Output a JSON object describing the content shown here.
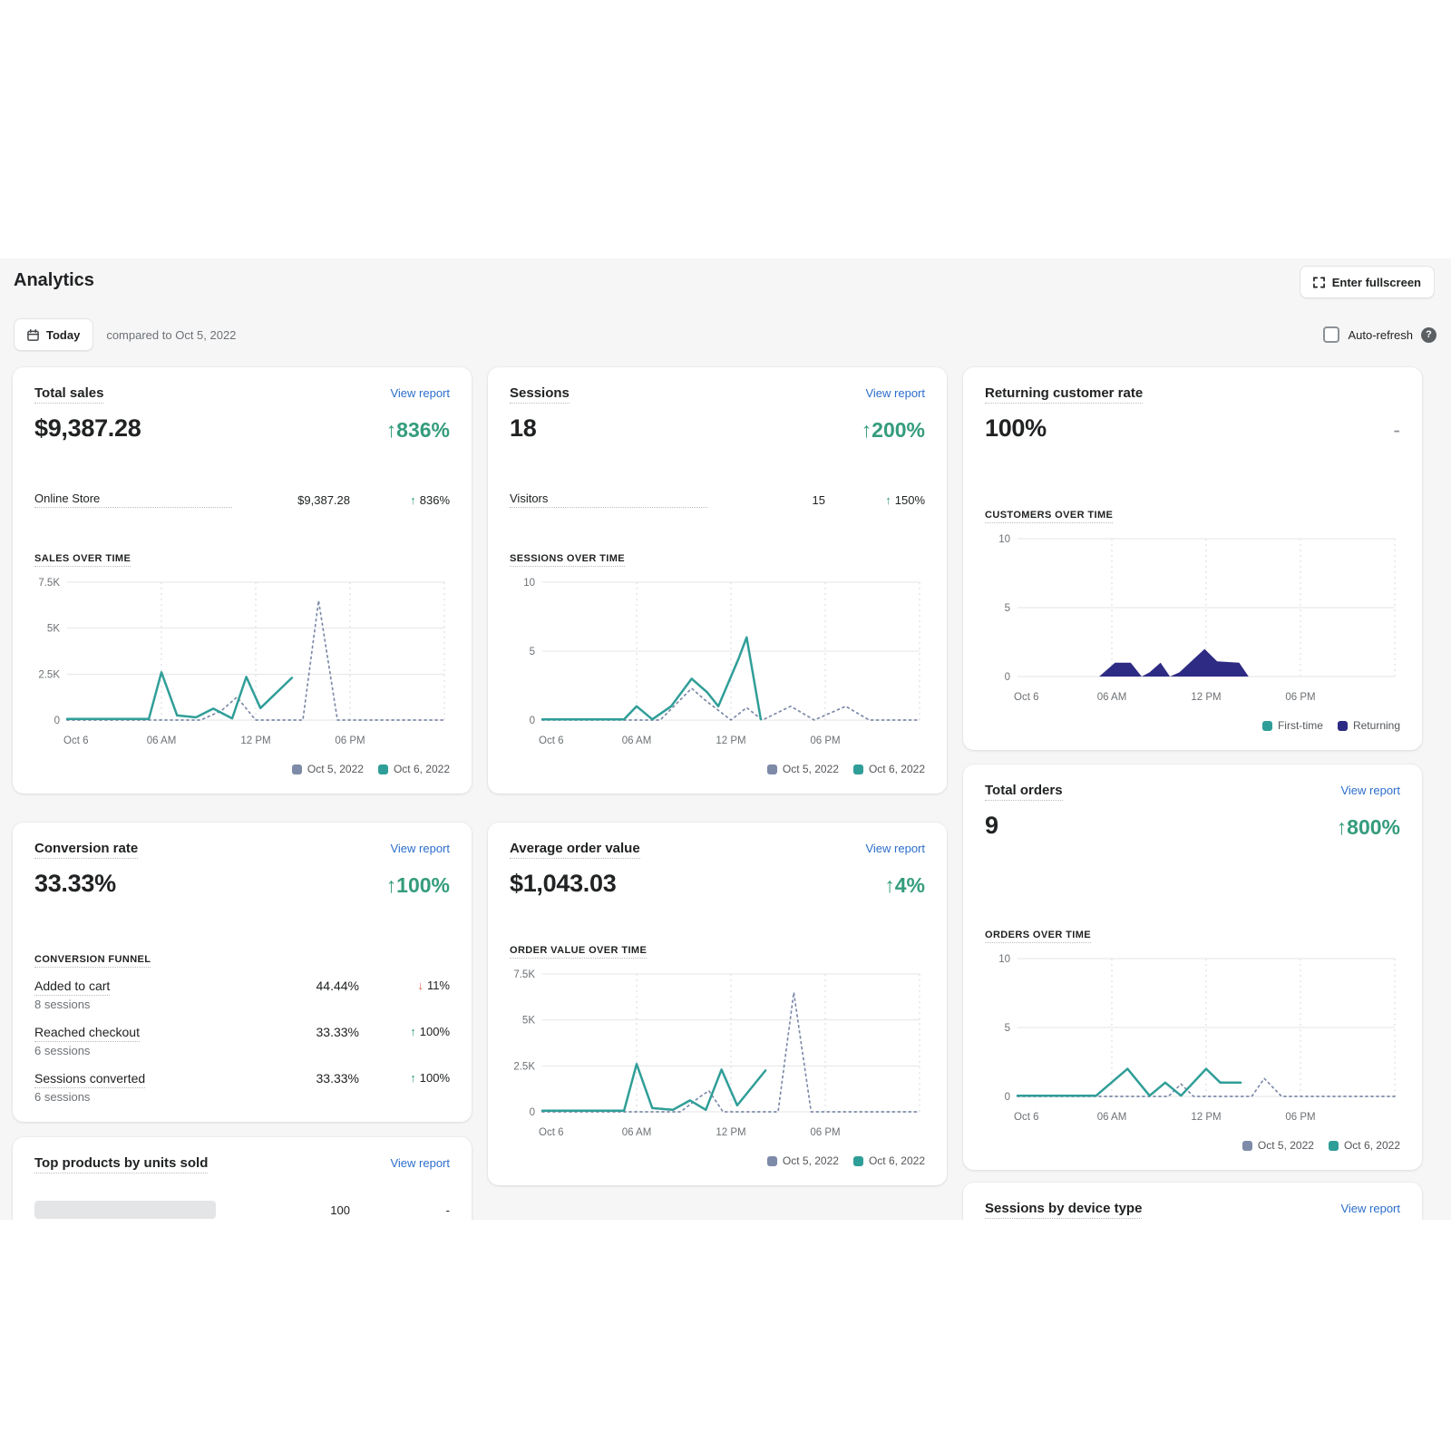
{
  "page": {
    "title": "Analytics",
    "fullscreen_button": "Enter fullscreen",
    "date_button": "Today",
    "compare_text": "compared to Oct 5, 2022",
    "auto_refresh_label": "Auto-refresh"
  },
  "colors": {
    "teal": "#309e98",
    "compare_gray": "#7d8aa8",
    "navy": "#2e2b84",
    "link_blue": "#2c6ecb",
    "green": "#349c7d",
    "red": "#dd5a45"
  },
  "cards": {
    "total_sales": {
      "title": "Total sales",
      "link": "View report",
      "value": "$9,387.28",
      "change": "↑836%",
      "rows": [
        {
          "label": "Online Store",
          "value": "$9,387.28",
          "arrow": "↑",
          "change": "836%"
        }
      ],
      "section_label": "SALES OVER TIME",
      "chart": {
        "type": "line",
        "xmax": 24,
        "ymax": 7500,
        "yticks": [
          {
            "v": 0,
            "label": "0"
          },
          {
            "v": 2500,
            "label": "2.5K"
          },
          {
            "v": 5000,
            "label": "5K"
          },
          {
            "v": 7500,
            "label": "7.5K"
          }
        ],
        "xticks": [
          {
            "v": 0,
            "label": "Oct 6"
          },
          {
            "v": 6,
            "label": "06 AM"
          },
          {
            "v": 12,
            "label": "12 PM"
          },
          {
            "v": 18,
            "label": "06 PM"
          }
        ],
        "series": [
          {
            "name": "Oct 5, 2022",
            "color": "#7d8aa8",
            "dash": true,
            "points": [
              [
                0,
                0
              ],
              [
                8.5,
                0
              ],
              [
                9.8,
                500
              ],
              [
                10.8,
                1250
              ],
              [
                12,
                0
              ],
              [
                15,
                0
              ],
              [
                16,
                6500
              ],
              [
                17.2,
                0
              ],
              [
                24,
                0
              ]
            ]
          },
          {
            "name": "Oct 6, 2022",
            "color": "#309e98",
            "points": [
              [
                0,
                60
              ],
              [
                5.2,
                60
              ],
              [
                6,
                2600
              ],
              [
                7,
                250
              ],
              [
                8.2,
                150
              ],
              [
                9.3,
                620
              ],
              [
                10.5,
                90
              ],
              [
                11.4,
                2350
              ],
              [
                12.3,
                650
              ],
              [
                14.3,
                2300
              ]
            ]
          }
        ]
      }
    },
    "sessions": {
      "title": "Sessions",
      "link": "View report",
      "value": "18",
      "change": "↑200%",
      "rows": [
        {
          "label": "Visitors",
          "value": "15",
          "arrow": "↑",
          "change": "150%"
        }
      ],
      "section_label": "SESSIONS OVER TIME",
      "chart": {
        "type": "line",
        "xmax": 24,
        "ymax": 10,
        "yticks": [
          {
            "v": 0,
            "label": "0"
          },
          {
            "v": 5,
            "label": "5"
          },
          {
            "v": 10,
            "label": "10"
          }
        ],
        "xticks": [
          {
            "v": 0,
            "label": "Oct 6"
          },
          {
            "v": 6,
            "label": "06 AM"
          },
          {
            "v": 12,
            "label": "12 PM"
          },
          {
            "v": 18,
            "label": "06 PM"
          }
        ],
        "series": [
          {
            "name": "Oct 5, 2022",
            "color": "#7d8aa8",
            "dash": true,
            "points": [
              [
                0,
                0
              ],
              [
                7.5,
                0
              ],
              [
                9.5,
                2.3
              ],
              [
                10.3,
                1.5
              ],
              [
                12,
                0
              ],
              [
                13,
                0.9
              ],
              [
                14,
                0
              ],
              [
                15.8,
                1
              ],
              [
                17.3,
                0
              ],
              [
                19.3,
                1
              ],
              [
                20.8,
                0
              ],
              [
                24,
                0
              ]
            ]
          },
          {
            "name": "Oct 6, 2022",
            "color": "#309e98",
            "points": [
              [
                0,
                0.05
              ],
              [
                5.2,
                0.05
              ],
              [
                6,
                1
              ],
              [
                7,
                0.05
              ],
              [
                8.2,
                1
              ],
              [
                9.5,
                3
              ],
              [
                10.5,
                2
              ],
              [
                11.2,
                1
              ],
              [
                12.5,
                4.5
              ],
              [
                13,
                6
              ],
              [
                13.9,
                0.05
              ]
            ]
          }
        ]
      }
    },
    "returning_rate": {
      "title": "Returning customer rate",
      "value": "100%",
      "change": "-",
      "section_label": "CUSTOMERS OVER TIME",
      "chart": {
        "type": "area",
        "xmax": 24,
        "ymax": 10,
        "yticks": [
          {
            "v": 0,
            "label": "0"
          },
          {
            "v": 5,
            "label": "5"
          },
          {
            "v": 10,
            "label": "10"
          }
        ],
        "xticks": [
          {
            "v": 0,
            "label": "Oct 6"
          },
          {
            "v": 6,
            "label": "06 AM"
          },
          {
            "v": 12,
            "label": "12 PM"
          },
          {
            "v": 18,
            "label": "06 PM"
          }
        ],
        "series": [
          {
            "name": "First-time",
            "color": "#309e98",
            "hidden": true,
            "points": [
              [
                0,
                0
              ],
              [
                24,
                0
              ]
            ]
          },
          {
            "name": "Returning",
            "color": "#2e2b84",
            "fill": true,
            "points": [
              [
                0,
                0
              ],
              [
                5.2,
                0
              ],
              [
                5.8,
                0.6
              ],
              [
                6.2,
                1
              ],
              [
                7.2,
                1
              ],
              [
                7.9,
                0
              ],
              [
                8.4,
                0.3
              ],
              [
                9.1,
                1
              ],
              [
                9.7,
                0
              ],
              [
                10.3,
                0.3
              ],
              [
                11.9,
                2
              ],
              [
                12.7,
                1.1
              ],
              [
                14.1,
                1
              ],
              [
                14.7,
                0
              ],
              [
                24,
                0
              ]
            ]
          }
        ]
      }
    },
    "conversion": {
      "title": "Conversion rate",
      "link": "View report",
      "value": "33.33%",
      "change": "↑100%",
      "section_label": "CONVERSION FUNNEL",
      "funnel": [
        {
          "label": "Added to cart",
          "sub": "8 sessions",
          "value": "44.44%",
          "arrow": "↓",
          "change": "11%"
        },
        {
          "label": "Reached checkout",
          "sub": "6 sessions",
          "value": "33.33%",
          "arrow": "↑",
          "change": "100%"
        },
        {
          "label": "Sessions converted",
          "sub": "6 sessions",
          "value": "33.33%",
          "arrow": "↑",
          "change": "100%"
        }
      ]
    },
    "aov": {
      "title": "Average order value",
      "link": "View report",
      "value": "$1,043.03",
      "change": "↑4%",
      "section_label": "ORDER VALUE OVER TIME",
      "chart": {
        "type": "line",
        "xmax": 24,
        "ymax": 7500,
        "yticks": [
          {
            "v": 0,
            "label": "0"
          },
          {
            "v": 2500,
            "label": "2.5K"
          },
          {
            "v": 5000,
            "label": "5K"
          },
          {
            "v": 7500,
            "label": "7.5K"
          }
        ],
        "xticks": [
          {
            "v": 0,
            "label": "Oct 6"
          },
          {
            "v": 6,
            "label": "06 AM"
          },
          {
            "v": 12,
            "label": "12 PM"
          },
          {
            "v": 18,
            "label": "06 PM"
          }
        ],
        "series": [
          {
            "name": "Oct 5, 2022",
            "color": "#7d8aa8",
            "dash": true,
            "points": [
              [
                0,
                0
              ],
              [
                8.8,
                0
              ],
              [
                10,
                800
              ],
              [
                10.6,
                1150
              ],
              [
                11.5,
                0
              ],
              [
                15,
                0
              ],
              [
                16,
                6500
              ],
              [
                17.1,
                0
              ],
              [
                24,
                0
              ]
            ]
          },
          {
            "name": "Oct 6, 2022",
            "color": "#309e98",
            "points": [
              [
                0,
                60
              ],
              [
                5.2,
                60
              ],
              [
                6,
                2600
              ],
              [
                7,
                200
              ],
              [
                8.3,
                110
              ],
              [
                9.4,
                620
              ],
              [
                10.4,
                110
              ],
              [
                11.4,
                2300
              ],
              [
                12.4,
                350
              ],
              [
                14.2,
                2250
              ]
            ]
          }
        ]
      }
    },
    "total_orders": {
      "title": "Total orders",
      "link": "View report",
      "value": "9",
      "change": "↑800%",
      "section_label": "ORDERS OVER TIME",
      "chart": {
        "type": "line",
        "xmax": 24,
        "ymax": 10,
        "yticks": [
          {
            "v": 0,
            "label": "0"
          },
          {
            "v": 5,
            "label": "5"
          },
          {
            "v": 10,
            "label": "10"
          }
        ],
        "xticks": [
          {
            "v": 0,
            "label": "Oct 6"
          },
          {
            "v": 6,
            "label": "06 AM"
          },
          {
            "v": 12,
            "label": "12 PM"
          },
          {
            "v": 18,
            "label": "06 PM"
          }
        ],
        "series": [
          {
            "name": "Oct 5, 2022",
            "color": "#7d8aa8",
            "dash": true,
            "points": [
              [
                0,
                0
              ],
              [
                9.6,
                0
              ],
              [
                10.4,
                0.9
              ],
              [
                11.2,
                0
              ],
              [
                14.9,
                0
              ],
              [
                15.7,
                1.3
              ],
              [
                16.8,
                0
              ],
              [
                24,
                0
              ]
            ]
          },
          {
            "name": "Oct 6, 2022",
            "color": "#309e98",
            "points": [
              [
                0,
                0.05
              ],
              [
                5,
                0.05
              ],
              [
                7,
                2
              ],
              [
                8.4,
                0.05
              ],
              [
                9.4,
                1
              ],
              [
                10.4,
                0.05
              ],
              [
                12,
                2
              ],
              [
                12.9,
                1
              ],
              [
                14.2,
                1
              ]
            ]
          }
        ]
      }
    },
    "top_products": {
      "title": "Top products by units sold",
      "link": "View report",
      "value": "100",
      "change": "-"
    },
    "device_type": {
      "title": "Sessions by device type",
      "link": "View report"
    }
  }
}
